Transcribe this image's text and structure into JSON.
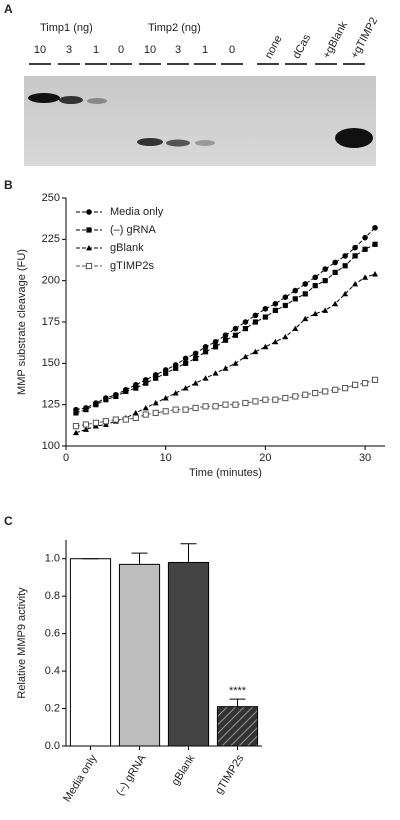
{
  "panel_labels": [
    "A",
    "B",
    "C"
  ],
  "blot": {
    "groups": [
      "Timp1 (ng)",
      "Timp2 (ng)"
    ],
    "lanes": [
      "10",
      "3",
      "1",
      "0",
      "10",
      "3",
      "1",
      "0",
      "none",
      "dCas",
      "+gBlank",
      "+gTIMP2"
    ]
  },
  "chart_data": [
    {
      "type": "line",
      "xlabel": "Time (minutes)",
      "ylabel": "MMP substrate cleavage (FU)",
      "x": [
        1,
        2,
        3,
        4,
        5,
        6,
        7,
        8,
        9,
        10,
        11,
        12,
        13,
        14,
        15,
        16,
        17,
        18,
        19,
        20,
        21,
        22,
        23,
        24,
        25,
        26,
        27,
        28,
        29,
        30,
        31
      ],
      "xlim": [
        0,
        32
      ],
      "xticks": [
        0,
        10,
        20,
        30
      ],
      "ylim": [
        100,
        250
      ],
      "yticks": [
        100,
        125,
        150,
        175,
        200,
        225,
        250
      ],
      "legend": "upper left",
      "series": [
        {
          "name": "Media only",
          "color": "#000000",
          "marker": "circle",
          "values": [
            122,
            123,
            126,
            129,
            131,
            134,
            137,
            140,
            143,
            146,
            149,
            153,
            156,
            160,
            163,
            167,
            171,
            175,
            179,
            183,
            186,
            190,
            194,
            198,
            202,
            207,
            211,
            215,
            220,
            226,
            232
          ]
        },
        {
          "name": "(–) gRNA",
          "color": "#000000",
          "marker": "square",
          "values": [
            120,
            122,
            125,
            128,
            130,
            133,
            135,
            138,
            141,
            144,
            147,
            150,
            153,
            157,
            160,
            164,
            167,
            171,
            175,
            178,
            182,
            185,
            189,
            192,
            197,
            200,
            205,
            209,
            215,
            219,
            222
          ]
        },
        {
          "name": "gBlank",
          "color": "#000000",
          "marker": "triangle",
          "values": [
            108,
            110,
            112,
            113,
            115,
            117,
            120,
            123,
            126,
            129,
            132,
            135,
            138,
            141,
            144,
            147,
            150,
            154,
            157,
            160,
            163,
            166,
            171,
            177,
            180,
            182,
            186,
            192,
            198,
            202,
            204
          ]
        },
        {
          "name": "gTIMP2s",
          "color": "#555555",
          "marker": "square-open",
          "values": [
            112,
            113,
            114,
            115,
            116,
            116,
            117,
            119,
            120,
            121,
            122,
            122,
            123,
            124,
            124,
            125,
            125,
            126,
            127,
            128,
            128,
            129,
            130,
            131,
            132,
            133,
            134,
            135,
            137,
            138,
            140
          ]
        }
      ]
    },
    {
      "type": "bar",
      "ylabel": "Relative MMP9 activity",
      "categories": [
        "Media only",
        "(–) gRNA",
        "gBlank",
        "gTIMP2s"
      ],
      "values": [
        1.0,
        0.97,
        0.98,
        0.21
      ],
      "errors": [
        0,
        0.06,
        0.1,
        0.04
      ],
      "colors": [
        "#ffffff",
        "#bdbdbd",
        "#444444",
        "hatch"
      ],
      "annotations": [
        null,
        null,
        null,
        "****"
      ],
      "ylim": [
        0,
        1.1
      ],
      "yticks": [
        {
          "value": 0,
          "label": "0.0"
        },
        {
          "value": 0.2,
          "label": "0.2"
        },
        {
          "value": 0.4,
          "label": "0.4"
        },
        {
          "value": 0.6,
          "label": "0.6"
        },
        {
          "value": 0.8,
          "label": "0.8"
        },
        {
          "value": 1.0,
          "label": "1.0"
        }
      ]
    }
  ]
}
